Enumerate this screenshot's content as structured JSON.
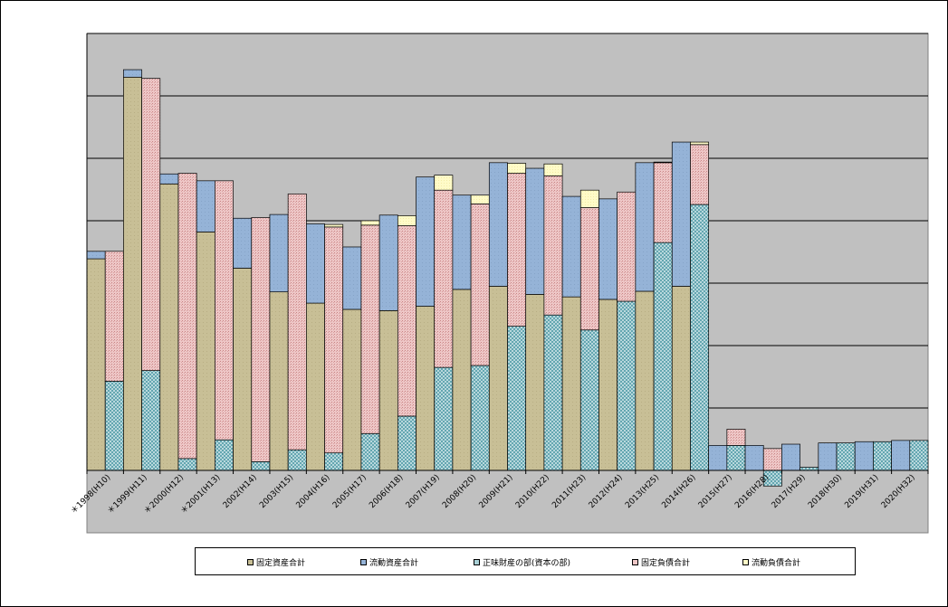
{
  "chart_data": {
    "type": "bar",
    "categories": [
      "＊1998(H10)",
      "＊1999(H11)",
      "＊2000(H12)",
      "＊2001(H13)",
      "2002(H14)",
      "2003(H15)",
      "2004(H16)",
      "2005(H17)",
      "2006(H18)",
      "2007(H19)",
      "2008(H20)",
      "2009(H21)",
      "2010(H22)",
      "2011(H23)",
      "2012(H24)",
      "2013(H25)",
      "2014(H26)",
      "2015(H27)",
      "2016(H28)",
      "2017(H29)",
      "2018(H30)",
      "2019(H31)",
      "2020(H32)"
    ],
    "stacks": [
      {
        "name": "assets",
        "series": [
          "fixed_assets",
          "current_assets"
        ]
      },
      {
        "name": "liabilities_and_equity",
        "series": [
          "net_worth",
          "fixed_liabilities",
          "current_liabilities"
        ]
      }
    ],
    "series": [
      {
        "key": "fixed_assets",
        "name": "固定資産合計",
        "pattern": "tan",
        "values": [
          3.39,
          6.3,
          4.59,
          3.82,
          3.24,
          2.86,
          2.68,
          2.58,
          2.56,
          2.63,
          2.9,
          2.95,
          2.82,
          2.78,
          2.74,
          2.87,
          2.95,
          0,
          0,
          0,
          0,
          0,
          0
        ]
      },
      {
        "key": "current_assets",
        "name": "流動資産合計",
        "pattern": "blue",
        "values": [
          0.12,
          0.12,
          0.16,
          0.82,
          0.8,
          1.24,
          1.27,
          1.0,
          1.53,
          2.07,
          1.51,
          1.98,
          2.02,
          1.61,
          1.61,
          2.06,
          2.31,
          0.4,
          0.4,
          0.42,
          0.44,
          0.46,
          0.48
        ]
      },
      {
        "key": "net_worth",
        "name": "正味財産の部(資本の部)",
        "pattern": "teal",
        "values": [
          1.43,
          1.6,
          0.19,
          0.49,
          0.14,
          0.33,
          0.28,
          0.59,
          0.87,
          1.65,
          1.68,
          2.31,
          2.49,
          2.25,
          2.71,
          3.65,
          4.26,
          0.4,
          -0.25,
          0.05,
          0.44,
          0.46,
          0.48
        ]
      },
      {
        "key": "fixed_liabilities",
        "name": "固定負債合計",
        "pattern": "pink",
        "values": [
          2.08,
          4.68,
          4.57,
          4.15,
          3.91,
          4.1,
          3.62,
          3.34,
          3.05,
          2.84,
          2.59,
          2.45,
          2.23,
          1.96,
          1.75,
          1.28,
          0.96,
          0.26,
          0.35,
          0,
          0,
          0,
          0
        ]
      },
      {
        "key": "current_liabilities",
        "name": "流動負債合計",
        "pattern": "yellow",
        "values": [
          0,
          0,
          0,
          0,
          0,
          0,
          0.04,
          0.07,
          0.16,
          0.24,
          0.14,
          0.16,
          0.19,
          0.28,
          0,
          0.01,
          0.04,
          0,
          0,
          0,
          0,
          0,
          0
        ]
      }
    ],
    "ylim": [
      0,
      7
    ],
    "grid": true,
    "legend_position": "bottom"
  }
}
